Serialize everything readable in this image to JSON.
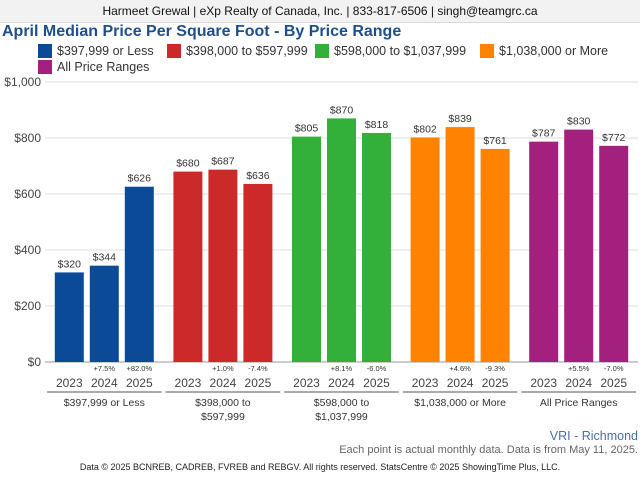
{
  "header": {
    "contact": "Harmeet Grewal | eXp Realty of Canada, Inc. | 833-817-6506 | singh@teamgrc.ca"
  },
  "chart_data": {
    "type": "bar",
    "title": "April Median Price Per Square Foot - By Price Range",
    "xlabel": "",
    "ylabel": "",
    "ylim": [
      0,
      1000
    ],
    "yticks": [
      "$0",
      "$200",
      "$400",
      "$600",
      "$800",
      "$1,000"
    ],
    "ytick_values": [
      0,
      200,
      400,
      600,
      800,
      1000
    ],
    "grid": true,
    "legend_position": "top-left",
    "groups": [
      {
        "name": "$397,999 or Less",
        "label_lines": [
          "$397,999 or Less"
        ],
        "color": "#0b4a96",
        "years": [
          "2023",
          "2024",
          "2025"
        ],
        "values": [
          320,
          344,
          626
        ],
        "value_labels": [
          "$320",
          "$344",
          "$626"
        ],
        "changes": [
          "",
          "+7.5%",
          "+82.0%"
        ]
      },
      {
        "name": "$398,000 to $597,999",
        "label_lines": [
          "$398,000 to",
          "$597,999"
        ],
        "color": "#cc2a2a",
        "years": [
          "2023",
          "2024",
          "2025"
        ],
        "values": [
          680,
          687,
          636
        ],
        "value_labels": [
          "$680",
          "$687",
          "$636"
        ],
        "changes": [
          "",
          "+1.0%",
          "-7.4%"
        ]
      },
      {
        "name": "$598,000 to $1,037,999",
        "label_lines": [
          "$598,000 to",
          "$1,037,999"
        ],
        "color": "#33b03a",
        "years": [
          "2023",
          "2024",
          "2025"
        ],
        "values": [
          805,
          870,
          818
        ],
        "value_labels": [
          "$805",
          "$870",
          "$818"
        ],
        "changes": [
          "",
          "+8.1%",
          "-6.0%"
        ]
      },
      {
        "name": "$1,038,000 or More",
        "label_lines": [
          "$1,038,000 or More"
        ],
        "color": "#ff8200",
        "years": [
          "2023",
          "2024",
          "2025"
        ],
        "values": [
          802,
          839,
          761
        ],
        "value_labels": [
          "$802",
          "$839",
          "$761"
        ],
        "changes": [
          "",
          "+4.6%",
          "-9.3%"
        ]
      },
      {
        "name": "All Price Ranges",
        "label_lines": [
          "All Price Ranges"
        ],
        "color": "#a3207f",
        "years": [
          "2023",
          "2024",
          "2025"
        ],
        "values": [
          787,
          830,
          772
        ],
        "value_labels": [
          "$787",
          "$830",
          "$772"
        ],
        "changes": [
          "",
          "+5.5%",
          "-7.0%"
        ]
      }
    ]
  },
  "footer": {
    "region": "VRI - Richmond",
    "note": "Each point is actual monthly data. Data is from May 11, 2025.",
    "copyright": "Data © 2025 BCNREB, CADREB, FVREB and REBGV. All rights reserved. StatsCentre © 2025 ShowingTime Plus, LLC."
  }
}
